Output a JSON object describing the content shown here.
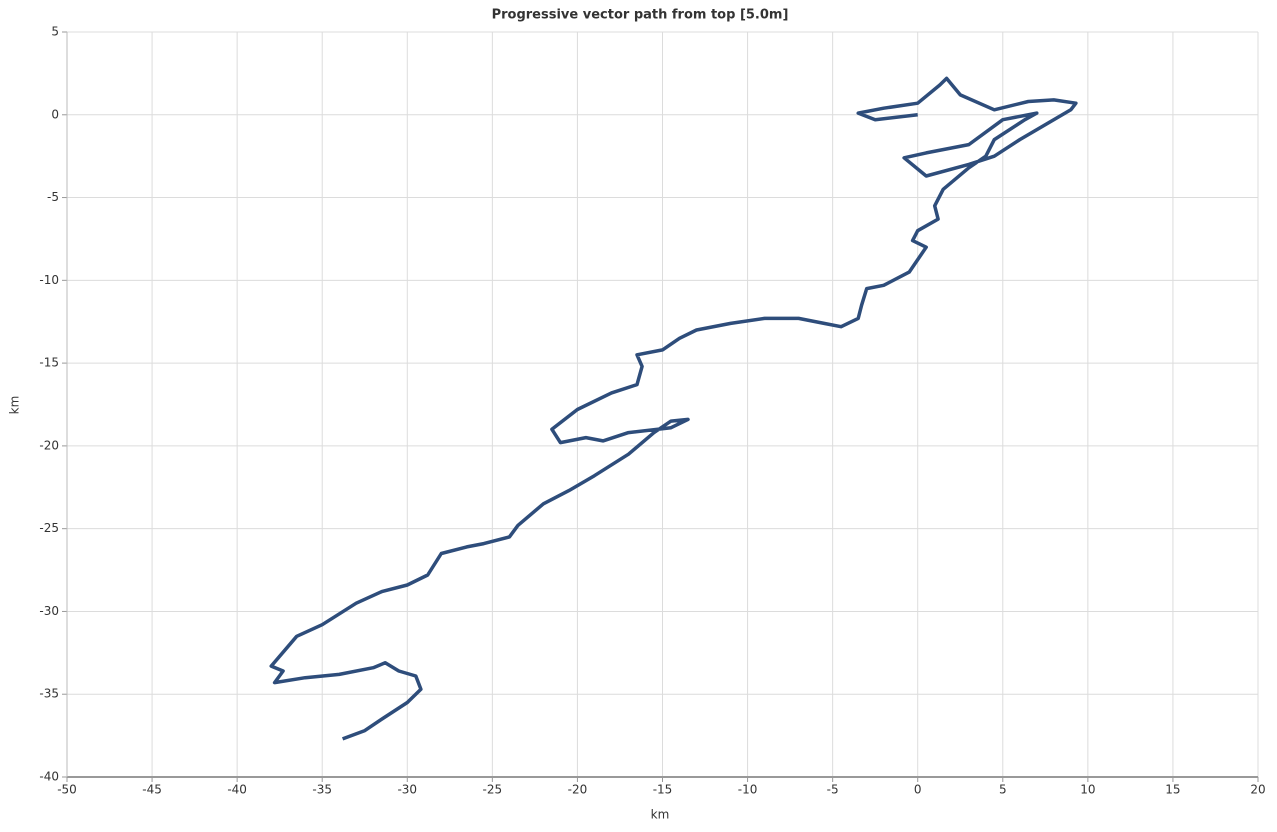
{
  "chart_data": {
    "type": "line",
    "title": "Progressive vector path from top [5.0m]",
    "x_label": "km",
    "y_label": "km",
    "xlim": [
      -50,
      20
    ],
    "xticks": [
      -50,
      -45,
      -40,
      -35,
      -30,
      -25,
      -20,
      -15,
      -10,
      -5,
      0,
      5,
      10,
      15,
      20
    ],
    "ylim": [
      -40,
      5
    ],
    "yticks": [
      -40,
      -35,
      -30,
      -25,
      -20,
      -15,
      -10,
      -5,
      0,
      5
    ],
    "grid": true,
    "series": [
      {
        "color": "#2e4d7b",
        "x": [
          0,
          -2.5,
          -3.5,
          -2,
          0,
          1.3,
          1.7,
          2.5,
          4.5,
          6.5,
          8,
          9.3,
          9,
          6,
          4.5,
          3,
          0.5,
          -0.8,
          0.5,
          3,
          5,
          7,
          6.3,
          4.5,
          4,
          3,
          1.5,
          1,
          1.2,
          0,
          -0.3,
          0.5,
          -0.5,
          -2,
          -3,
          -3.3,
          -3.5,
          -4.5,
          -5.5,
          -7,
          -9,
          -11,
          -13,
          -14,
          -15,
          -16.5,
          -16.2,
          -16.5,
          -18,
          -20,
          -21.5,
          -21,
          -19.5,
          -18.5,
          -17,
          -14.5,
          -13.5,
          -14.5,
          -15.5,
          -17,
          -19,
          -20.5,
          -22,
          -23.5,
          -24,
          -25.5,
          -26.5,
          -28,
          -28.8,
          -30,
          -31.5,
          -33,
          -35,
          -36.5,
          -38,
          -37.3,
          -37.8,
          -36,
          -34,
          -32,
          -31.3,
          -30.5,
          -29.5,
          -29.2,
          -30,
          -31.5,
          -32.5,
          -33.8
        ],
        "values": [
          0,
          -0.3,
          0.1,
          0.4,
          0.7,
          1.8,
          2.2,
          1.2,
          0.3,
          0.8,
          0.9,
          0.7,
          0.3,
          -1.5,
          -2.5,
          -3,
          -3.7,
          -2.6,
          -2.3,
          -1.8,
          -0.3,
          0.1,
          -0.3,
          -1.5,
          -2.5,
          -3.2,
          -4.5,
          -5.5,
          -6.3,
          -7,
          -7.6,
          -8,
          -9.5,
          -10.3,
          -10.5,
          -11.5,
          -12.3,
          -12.8,
          -12.6,
          -12.3,
          -12.3,
          -12.6,
          -13,
          -13.5,
          -14.2,
          -14.5,
          -15.2,
          -16.3,
          -16.8,
          -17.8,
          -19,
          -19.8,
          -19.5,
          -19.7,
          -19.2,
          -18.9,
          -18.4,
          -18.5,
          -19.2,
          -20.5,
          -21.8,
          -22.7,
          -23.5,
          -24.8,
          -25.5,
          -25.9,
          -26.1,
          -26.5,
          -27.8,
          -28.4,
          -28.8,
          -29.5,
          -30.8,
          -31.5,
          -33.3,
          -33.6,
          -34.3,
          -34,
          -33.8,
          -33.4,
          -33.1,
          -33.6,
          -33.9,
          -34.7,
          -35.5,
          -36.5,
          -37.2,
          -37.7
        ]
      }
    ]
  }
}
